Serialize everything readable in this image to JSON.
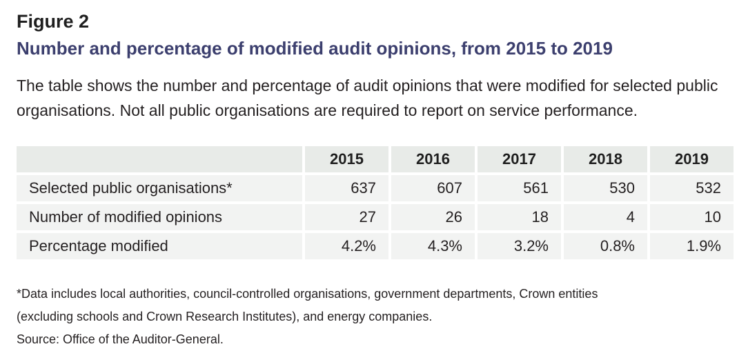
{
  "figure": {
    "label": "Figure 2",
    "title": "Number and percentage of modified audit opinions, from 2015 to 2019",
    "intro": "The table shows the number and percentage of audit opinions that were modified for selected public organisations. Not all public organisations are required to report on service performance."
  },
  "table": {
    "years": [
      "2015",
      "2016",
      "2017",
      "2018",
      "2019"
    ],
    "rows": [
      {
        "label": "Selected public organisations*",
        "values": [
          "637",
          "607",
          "561",
          "530",
          "532"
        ]
      },
      {
        "label": "Number of modified opinions",
        "values": [
          "27",
          "26",
          "18",
          "4",
          "10"
        ]
      },
      {
        "label": "Percentage modified",
        "values": [
          "4.2%",
          "4.3%",
          "3.2%",
          "0.8%",
          "1.9%"
        ]
      }
    ]
  },
  "notes": {
    "footnote_line1": "*Data includes local authorities, council-controlled organisations, government departments, Crown entities",
    "footnote_line2": "(excluding schools and Crown Research Institutes), and energy companies.",
    "source": "Source: Office of the Auditor-General."
  }
}
